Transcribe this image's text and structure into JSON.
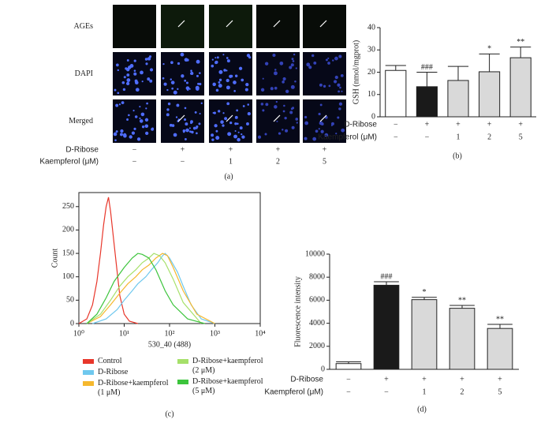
{
  "chart_data": [
    {
      "type": "image-grid",
      "panel_label": "(a)",
      "row_labels": [
        "AGEs",
        "DAPI",
        "Merged"
      ],
      "condition_rows": [
        {
          "label": "D-Ribose",
          "values": [
            "−",
            "+",
            "+",
            "+",
            "+"
          ]
        },
        {
          "label": "Kaempferol (μM)",
          "values": [
            "−",
            "−",
            "1",
            "2",
            "5"
          ]
        }
      ]
    },
    {
      "type": "bar",
      "panel_label": "(b)",
      "ylabel": "GSH (nmol/mgprot)",
      "values": [
        20.8,
        13.5,
        16.3,
        20.2,
        26.5
      ],
      "errors": [
        2.2,
        6.5,
        6.3,
        8.0,
        4.8
      ],
      "annotations": [
        null,
        "###",
        null,
        "*",
        "**"
      ],
      "colors": [
        "#ffffff",
        "#1a1a1a",
        "#d9d9d9",
        "#d9d9d9",
        "#d9d9d9"
      ],
      "ylim": [
        0,
        40
      ],
      "yticks": [
        0,
        10,
        20,
        30,
        40
      ],
      "condition_rows": [
        {
          "label": "D-Ribose",
          "values": [
            "−",
            "+",
            "+",
            "+",
            "+"
          ]
        },
        {
          "label": "Kaempferol (μM)",
          "values": [
            "−",
            "−",
            "1",
            "2",
            "5"
          ]
        }
      ]
    },
    {
      "type": "line",
      "panel_label": "(c)",
      "xlabel": "530_40 (488)",
      "ylabel": "Count",
      "xscale": "log",
      "xlim": [
        1,
        10000
      ],
      "ylim": [
        0,
        280
      ],
      "xticks": [
        {
          "value": 1,
          "label": "10⁰"
        },
        {
          "value": 10,
          "label": "10¹"
        },
        {
          "value": 100,
          "label": "10²"
        },
        {
          "value": 1000,
          "label": "10³"
        },
        {
          "value": 10000,
          "label": "10⁴"
        }
      ],
      "yticks": [
        0,
        50,
        100,
        150,
        200,
        250
      ],
      "series": [
        {
          "name": "Control",
          "color": "#e8362a",
          "x": [
            1,
            1.5,
            2,
            2.5,
            3,
            3.5,
            4,
            4.5,
            5,
            6,
            7,
            8,
            10,
            13,
            20
          ],
          "values": [
            0,
            10,
            40,
            90,
            150,
            210,
            250,
            270,
            240,
            170,
            110,
            60,
            20,
            5,
            0
          ]
        },
        {
          "name": "D-Ribose",
          "color": "#6fc8ee",
          "x": [
            2,
            4,
            7,
            10,
            15,
            20,
            30,
            40,
            55,
            70,
            80,
            100,
            150,
            200,
            300,
            500,
            1000
          ],
          "values": [
            0,
            10,
            30,
            50,
            70,
            85,
            100,
            115,
            130,
            145,
            150,
            140,
            110,
            80,
            40,
            10,
            0
          ]
        },
        {
          "name": "D-Ribose+kaempferol (1 μM)",
          "color": "#f5b82e",
          "x": [
            1.5,
            3,
            5,
            8,
            12,
            18,
            25,
            35,
            50,
            70,
            90,
            120,
            200,
            400,
            1000
          ],
          "values": [
            0,
            15,
            40,
            65,
            85,
            100,
            115,
            125,
            140,
            150,
            145,
            120,
            70,
            20,
            0
          ]
        },
        {
          "name": "D-Ribose+kaempferol (2 μM)",
          "color": "#a6e06a",
          "x": [
            1.5,
            3,
            5,
            8,
            12,
            18,
            25,
            35,
            45,
            60,
            80,
            120,
            200,
            500
          ],
          "values": [
            0,
            20,
            50,
            80,
            100,
            115,
            130,
            140,
            150,
            145,
            130,
            95,
            45,
            0
          ]
        },
        {
          "name": "D-Ribose+kaempferol (5 μM)",
          "color": "#3cc43c",
          "x": [
            1.5,
            2.5,
            4,
            6,
            10,
            15,
            20,
            25,
            35,
            50,
            80,
            120,
            250,
            600
          ],
          "values": [
            0,
            20,
            55,
            90,
            120,
            140,
            150,
            148,
            140,
            115,
            70,
            40,
            10,
            0
          ]
        }
      ]
    },
    {
      "type": "bar",
      "panel_label": "(d)",
      "ylabel": "Fluorescence intensity",
      "values": [
        500,
        7300,
        6050,
        5300,
        3550
      ],
      "errors": [
        150,
        300,
        200,
        250,
        350
      ],
      "annotations": [
        null,
        "###",
        "*",
        "**",
        "**"
      ],
      "colors": [
        "#ffffff",
        "#1a1a1a",
        "#d9d9d9",
        "#d9d9d9",
        "#d9d9d9"
      ],
      "ylim": [
        0,
        10000
      ],
      "yticks": [
        0,
        2000,
        4000,
        6000,
        8000,
        10000
      ],
      "condition_rows": [
        {
          "label": "D-Ribose",
          "values": [
            "−",
            "+",
            "+",
            "+",
            "+"
          ]
        },
        {
          "label": "Kaempferol (μM)",
          "values": [
            "−",
            "−",
            "1",
            "2",
            "5"
          ]
        }
      ]
    }
  ]
}
